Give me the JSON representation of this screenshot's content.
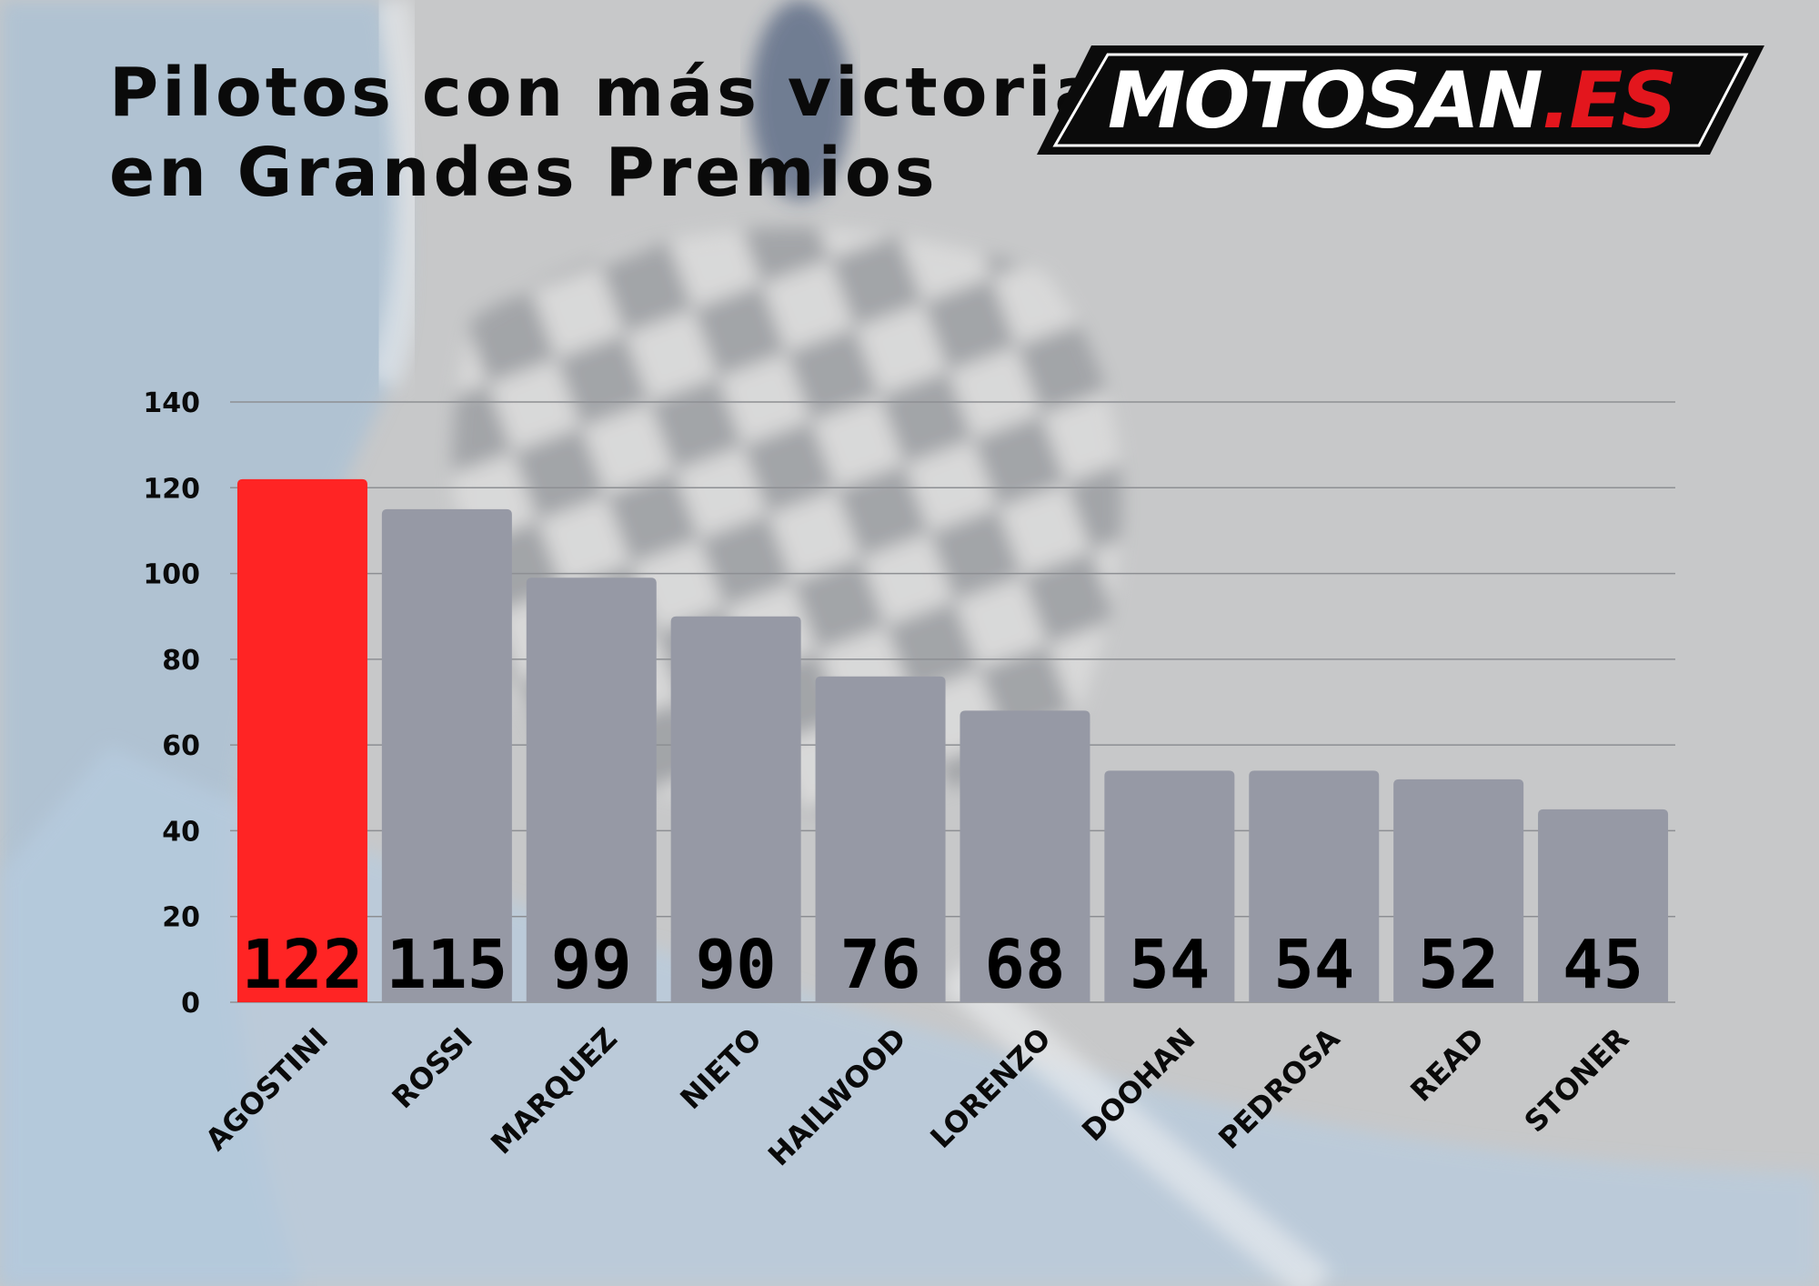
{
  "title_lines": [
    "Pilotos con más victorias",
    "en Grandes Premios"
  ],
  "logo": {
    "text_white": "MOTOSAN",
    "text_red": ".ES"
  },
  "colors": {
    "highlight": "#ff2424",
    "bar": "#9699a5",
    "text": "#0a0a0a",
    "grid": "#8d8f93"
  },
  "chart_data": {
    "type": "bar",
    "categories": [
      "AGOSTINI",
      "ROSSI",
      "MARQUEZ",
      "NIETO",
      "HAILWOOD",
      "LORENZO",
      "DOOHAN",
      "PEDROSA",
      "READ",
      "STONER"
    ],
    "values": [
      122,
      115,
      99,
      90,
      76,
      68,
      54,
      54,
      52,
      45
    ],
    "data_labels": [
      "122",
      "115",
      "99",
      "90",
      "76",
      "68",
      "54",
      "54",
      "52",
      "45"
    ],
    "highlight_index": 0,
    "ylim": [
      0,
      140
    ],
    "yticks": [
      "0",
      "20",
      "40",
      "60",
      "80",
      "100",
      "120",
      "140"
    ],
    "grid": true,
    "legend": false
  }
}
